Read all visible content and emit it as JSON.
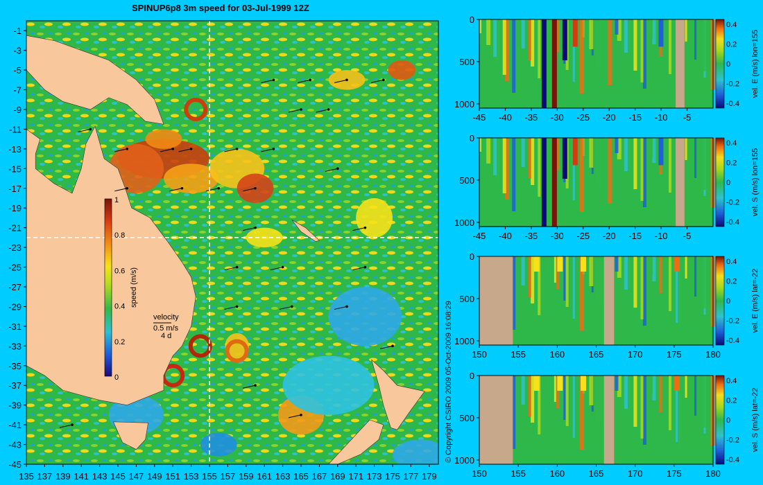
{
  "page": {
    "title": "SPINUP6p8 3m speed for 03-Jul-1999 12Z",
    "copyright": "© Copyright CSIRO 2009   05-Oct-2009 16:08:29",
    "colors": {
      "background": "#00ccff",
      "land": "#f9c79c",
      "section_land": "#c8a88a",
      "crosshair": "#ffffff"
    }
  },
  "chart_data": [
    {
      "type": "heatmap",
      "title": "SPINUP6p8 3m speed for 03-Jul-1999 12Z",
      "xlabel": "",
      "ylabel": "",
      "xlim": [
        135,
        180
      ],
      "ylim": [
        -45,
        0
      ],
      "x_ticks": [
        "135",
        "137",
        "139",
        "141",
        "143",
        "145",
        "147",
        "149",
        "151",
        "153",
        "155",
        "157",
        "159",
        "161",
        "163",
        "165",
        "167",
        "169",
        "171",
        "173",
        "175",
        "177",
        "179"
      ],
      "y_ticks": [
        "-1",
        "-3",
        "-5",
        "-7",
        "-9",
        "-11",
        "-13",
        "-15",
        "-17",
        "-19",
        "-21",
        "-23",
        "-25",
        "-27",
        "-29",
        "-31",
        "-33",
        "-35",
        "-37",
        "-39",
        "-41",
        "-43",
        "-45"
      ],
      "colorbar": {
        "label": "speed (m/s)",
        "ticks": [
          "1",
          "0.8",
          "0.6",
          "0.4",
          "0.2",
          "0"
        ],
        "range": [
          0,
          1
        ]
      },
      "velocity_key": {
        "title": "velocity",
        "scale": "0.5 m/s",
        "duration": "4 d"
      },
      "crosshair": {
        "lon": 155,
        "lat": -22
      }
    },
    {
      "type": "heatmap",
      "ylabel": "vel. E (m/s) lon=155",
      "x_ticks": [
        "-45",
        "-40",
        "-35",
        "-30",
        "-25",
        "-20",
        "-15",
        "-10",
        "-5"
      ],
      "y_ticks": [
        "0",
        "500",
        "1000"
      ],
      "xlim": [
        -45,
        0
      ],
      "ylim": [
        1050,
        0
      ],
      "colorbar": {
        "ticks": [
          "0.4",
          "0.2",
          "0",
          "-0.2",
          "-0.4"
        ],
        "range": [
          -0.45,
          0.45
        ]
      }
    },
    {
      "type": "heatmap",
      "ylabel": "vel. S (m/s) lon=155",
      "x_ticks": [
        "-45",
        "-40",
        "-35",
        "-30",
        "-25",
        "-20",
        "-15",
        "-10",
        "-5"
      ],
      "y_ticks": [
        "0",
        "500",
        "1000"
      ],
      "xlim": [
        -45,
        0
      ],
      "ylim": [
        1050,
        0
      ],
      "colorbar": {
        "ticks": [
          "0.4",
          "0.2",
          "0",
          "-0.2",
          "-0.4"
        ],
        "range": [
          -0.45,
          0.45
        ]
      }
    },
    {
      "type": "heatmap",
      "ylabel": "vel. E (m/s) lat=-22",
      "x_ticks": [
        "150",
        "155",
        "160",
        "165",
        "170",
        "175",
        "180"
      ],
      "y_ticks": [
        "0",
        "500",
        "1000"
      ],
      "xlim": [
        150,
        180
      ],
      "ylim": [
        1050,
        0
      ],
      "colorbar": {
        "ticks": [
          "0.4",
          "0.2",
          "0",
          "-0.2",
          "-0.4"
        ],
        "range": [
          -0.45,
          0.45
        ]
      }
    },
    {
      "type": "heatmap",
      "ylabel": "vel. S (m/s) lat=-22",
      "x_ticks": [
        "150",
        "155",
        "160",
        "165",
        "170",
        "175",
        "180"
      ],
      "y_ticks": [
        "0",
        "500",
        "1000"
      ],
      "xlim": [
        150,
        180
      ],
      "ylim": [
        1050,
        0
      ],
      "colorbar": {
        "ticks": [
          "0.4",
          "0.2",
          "0",
          "-0.2",
          "-0.4"
        ],
        "range": [
          -0.45,
          0.45
        ]
      }
    }
  ]
}
